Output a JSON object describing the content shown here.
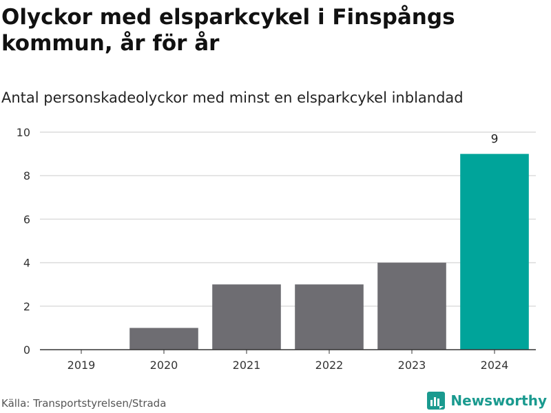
{
  "header": {
    "title": "Olyckor med elsparkcykel i Finspångs kommun, år för år",
    "subtitle": "Antal personskadeolyckor med minst en elsparkcykel inblandad"
  },
  "footer": {
    "source": "Källa: Transportstyrelsen/Strada",
    "brand": "Newsworthy"
  },
  "colors": {
    "bar": "#6e6d72",
    "highlight": "#00a49a",
    "grid": "#dcdcdc",
    "brand": "#1a9a8f"
  },
  "chart_data": {
    "type": "bar",
    "categories": [
      "2019",
      "2020",
      "2021",
      "2022",
      "2023",
      "2024"
    ],
    "values": [
      0,
      1,
      3,
      3,
      4,
      9
    ],
    "highlight_index": 5,
    "data_labels": [
      {
        "index": 5,
        "text": "9"
      }
    ],
    "ylim": [
      0,
      10
    ],
    "yticks": [
      0,
      2,
      4,
      6,
      8,
      10
    ],
    "grid": true,
    "legend": "none"
  }
}
